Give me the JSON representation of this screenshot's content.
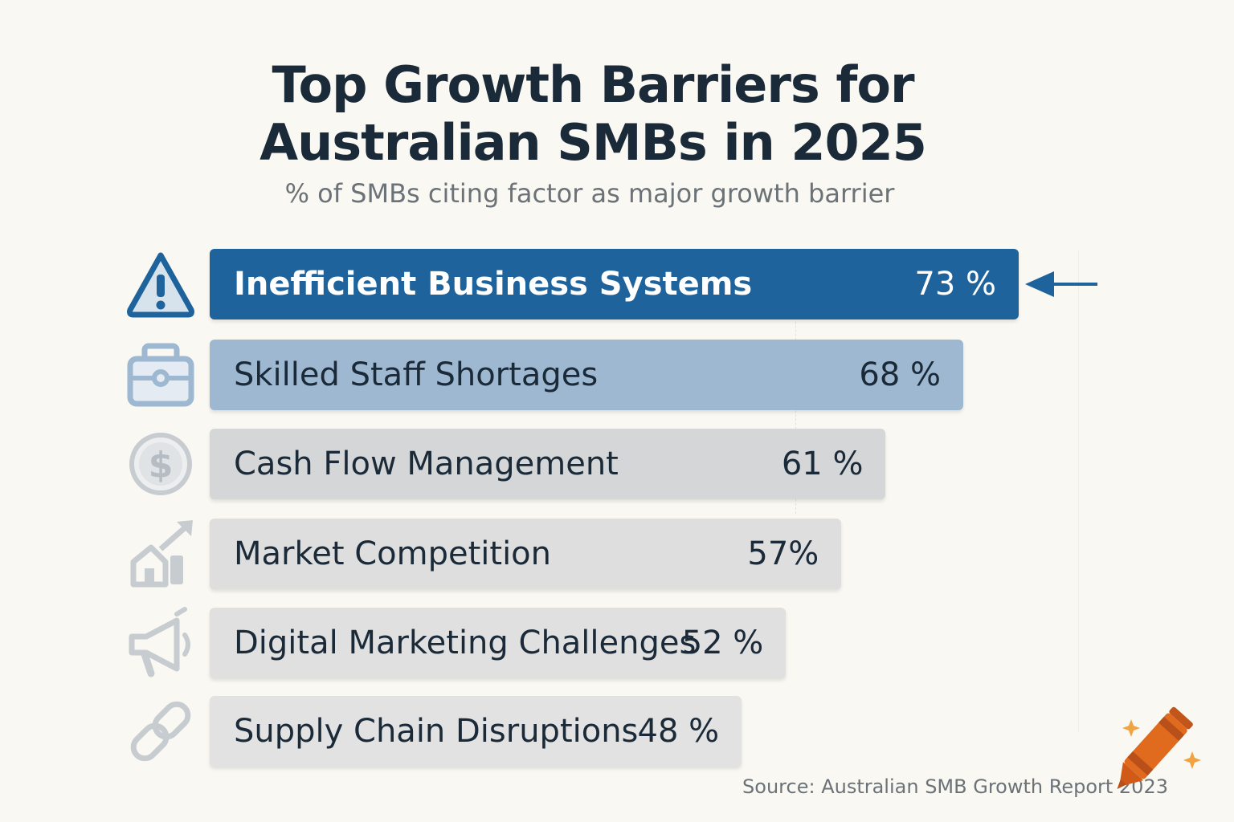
{
  "chart_data": {
    "type": "bar",
    "orientation": "horizontal",
    "title": "Top Growth Barriers for Australian SMBs in 2025",
    "subtitle": "% of SMBs citing factor as major growth barrier",
    "categories": [
      "Inefficient Business Systems",
      "Skilled Staff Shortages",
      "Cash Flow Management",
      "Market Competition",
      "Digital Marketing Challenges",
      "Supply Chain Disruptions"
    ],
    "values": [
      73,
      68,
      61,
      57,
      52,
      48
    ],
    "value_labels": [
      "73 %",
      "68 %",
      "61 %",
      "57%",
      "52 %",
      "48 %"
    ],
    "icons": [
      "warning-icon",
      "briefcase-icon",
      "dollar-icon",
      "growth-building-icon",
      "megaphone-icon",
      "chain-link-icon"
    ],
    "bar_colors": [
      "#1e639c",
      "#9db8d0",
      "#d4d6d8",
      "#dedede",
      "#e0e0e0",
      "#e2e2e2"
    ],
    "highlight_index": 0,
    "highlight_color": "#1e639c",
    "source": "Source: Australian SMB Growth Report 2023"
  }
}
